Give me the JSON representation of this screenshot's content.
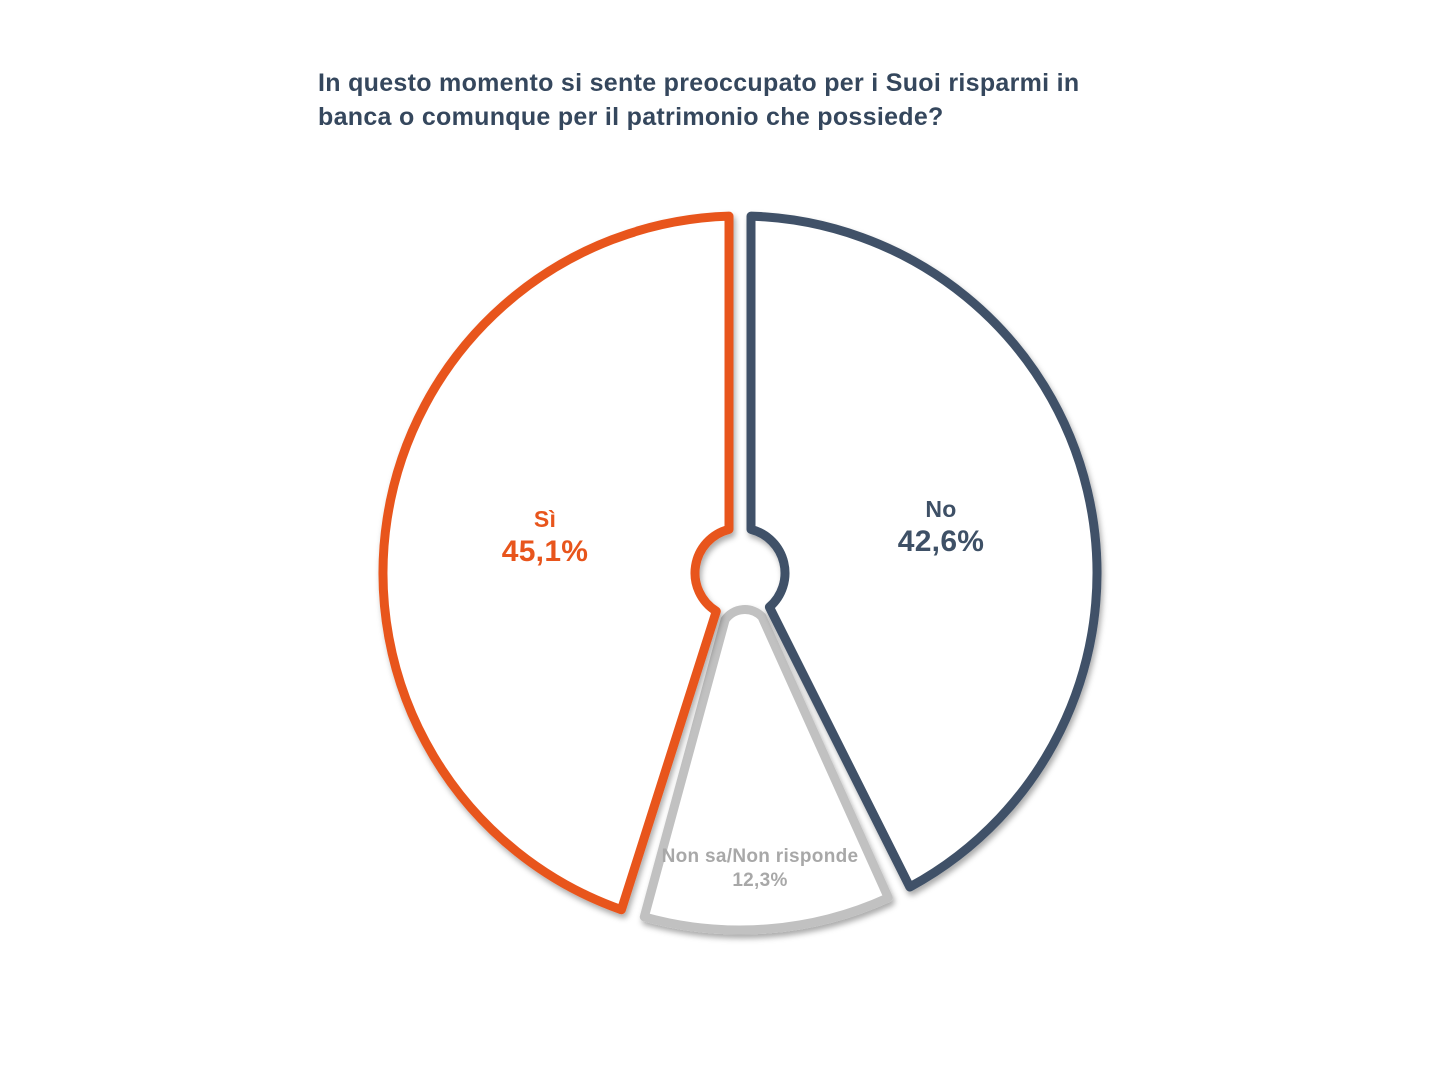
{
  "page": {
    "background": "#ffffff"
  },
  "title": {
    "line1": "In questo momento si sente preoccupato per i Suoi risparmi in",
    "line2": "banca o comunque per il patrimonio che possiede?",
    "color": "#35475D"
  },
  "chart_data": {
    "type": "pie",
    "style": "outlined-donut-white-fill",
    "title": "In questo momento si sente preoccupato per i Suoi risparmi in banca o comunque per il patrimonio che possiede?",
    "start_angle_deg": 0,
    "direction": "clockwise",
    "legend_position": "none",
    "labels_inside": true,
    "slices": [
      {
        "id": "no",
        "label": "No",
        "value": 42.6,
        "display": "42,6%",
        "color": "#3F5168",
        "text_color": "#3E5066",
        "detached": false
      },
      {
        "id": "nonsa",
        "label": "Non sa/Non risponde",
        "value": 12.3,
        "display": "12,3%",
        "color": "#C1C1C1",
        "text_color": "#A8A8A8",
        "detached": true
      },
      {
        "id": "si",
        "label": "Sì",
        "value": 45.1,
        "display": "45,1%",
        "color": "#E8551C",
        "text_color": "#E8551C",
        "detached": false
      }
    ]
  }
}
